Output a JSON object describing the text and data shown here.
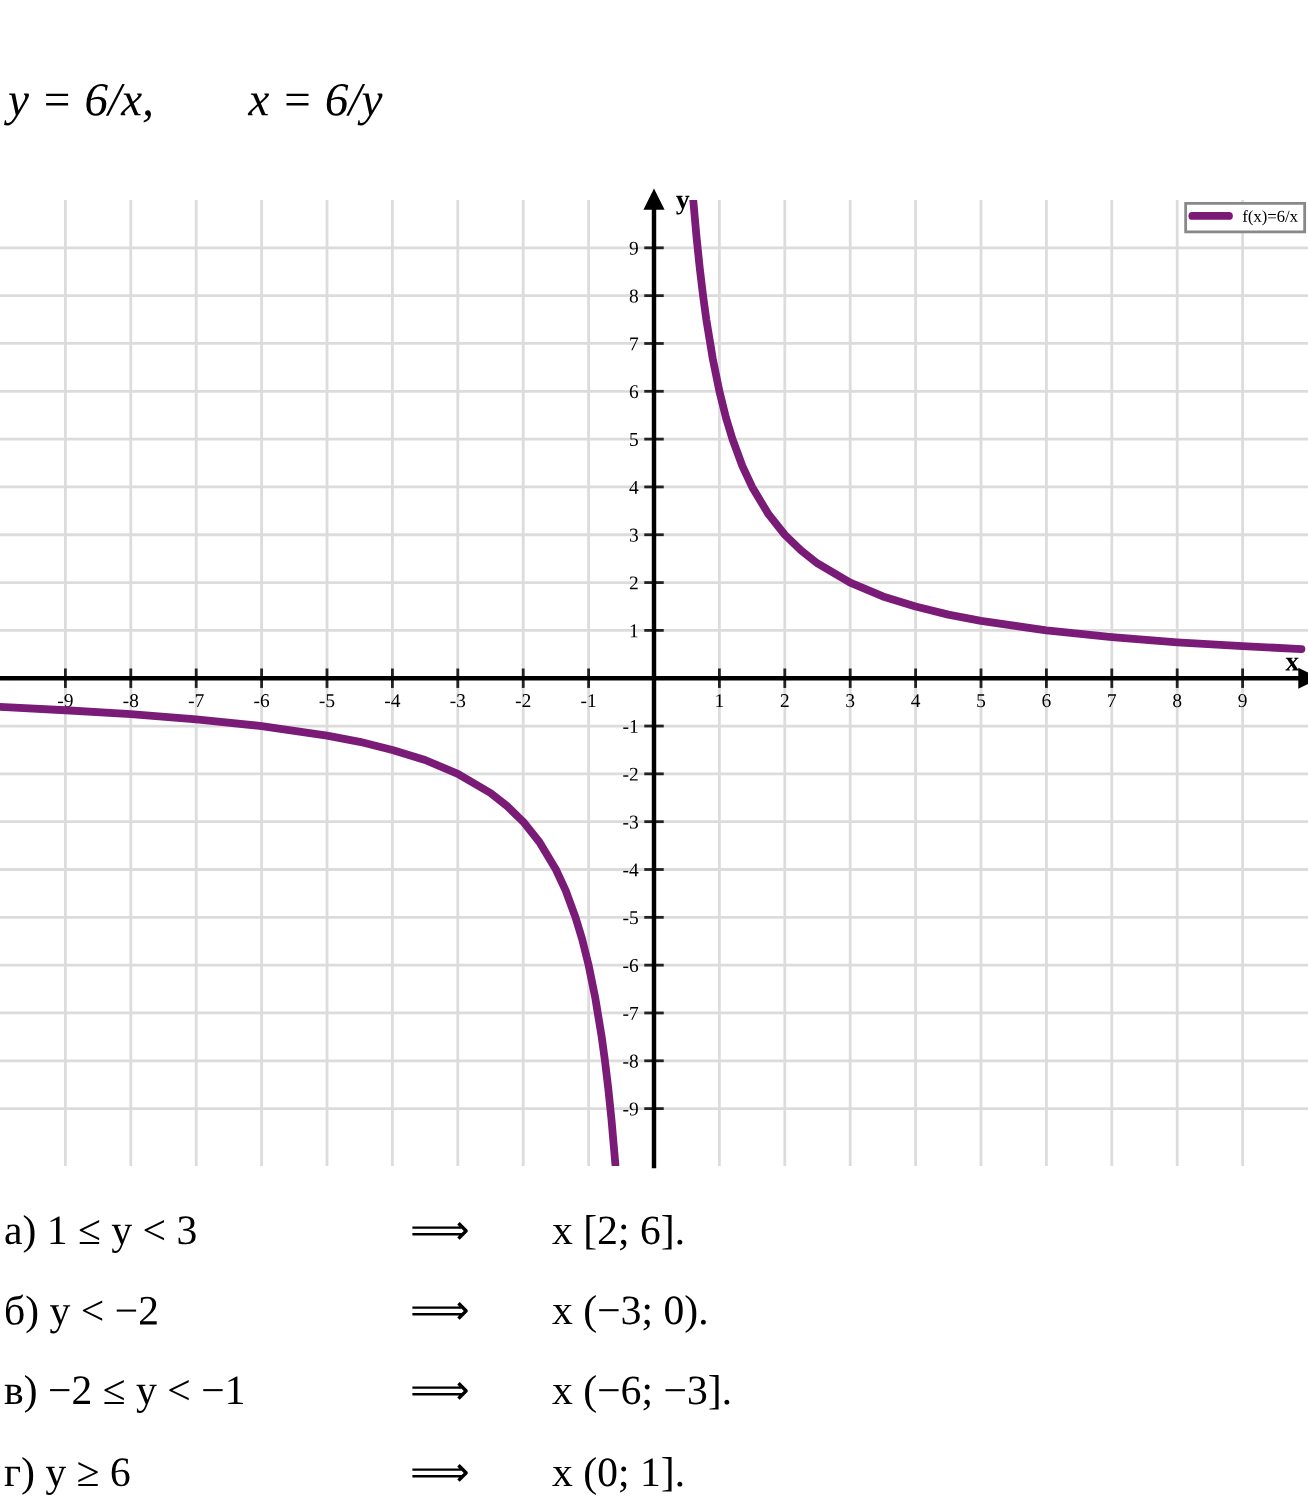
{
  "chart_data": {
    "type": "line",
    "title": "y = 6/x,        x = 6/y",
    "xlabel": "x",
    "ylabel": "y",
    "x": [
      -10,
      -9,
      -8,
      -7,
      -6,
      -5,
      -4.5,
      -4,
      -3.5,
      -3,
      -2.5,
      -2.25,
      -2,
      -1.75,
      -1.5,
      -1.35,
      -1.2,
      -1.1,
      -1,
      -0.9,
      -0.8,
      -0.75,
      -0.7,
      -0.65,
      -0.59,
      0,
      0.6,
      0.65,
      0.7,
      0.75,
      0.8,
      0.9,
      1,
      1.1,
      1.2,
      1.35,
      1.5,
      1.75,
      2,
      2.25,
      2.5,
      3,
      3.5,
      4,
      4.5,
      5,
      6,
      7,
      8,
      9,
      9.9
    ],
    "series": [
      {
        "name": "f(x)=6/x",
        "color": "#7a1b78",
        "values": [
          -0.6,
          -0.67,
          -0.75,
          -0.86,
          -1,
          -1.2,
          -1.33,
          -1.5,
          -1.71,
          -2,
          -2.4,
          -2.67,
          -3,
          -3.43,
          -4,
          -4.44,
          -5,
          -5.45,
          -6,
          -6.67,
          -7.5,
          -8,
          -8.57,
          -9.23,
          -10.17,
          null,
          10,
          9.23,
          8.57,
          8,
          7.5,
          6.67,
          6,
          5.45,
          5,
          4.44,
          4,
          3.43,
          3,
          2.67,
          2.4,
          2,
          1.71,
          1.5,
          1.33,
          1.2,
          1,
          0.86,
          0.75,
          0.67,
          0.61
        ]
      }
    ],
    "xlim": [
      -10,
      10
    ],
    "ylim": [
      -10.2,
      10
    ],
    "xticks": [
      -9,
      -8,
      -7,
      -6,
      -5,
      -4,
      -3,
      -2,
      -1,
      1,
      2,
      3,
      4,
      5,
      6,
      7,
      8,
      9
    ],
    "yticks": [
      -9,
      -8,
      -7,
      -6,
      -5,
      -4,
      -3,
      -2,
      -1,
      1,
      2,
      3,
      4,
      5,
      6,
      7,
      8,
      9
    ],
    "grid": true,
    "legend": "top right",
    "annotations": [
      "а) 1 ≤ y < 3",
      "⟹",
      "x [2; 6].",
      "б) y < −2",
      "⟹",
      "x (−3; 0).",
      "в) −2 ≤ y < −1",
      "⟹",
      "x (−6; −3].",
      "г) y ≥ 6",
      "⟹",
      "x (0; 1]."
    ]
  }
}
